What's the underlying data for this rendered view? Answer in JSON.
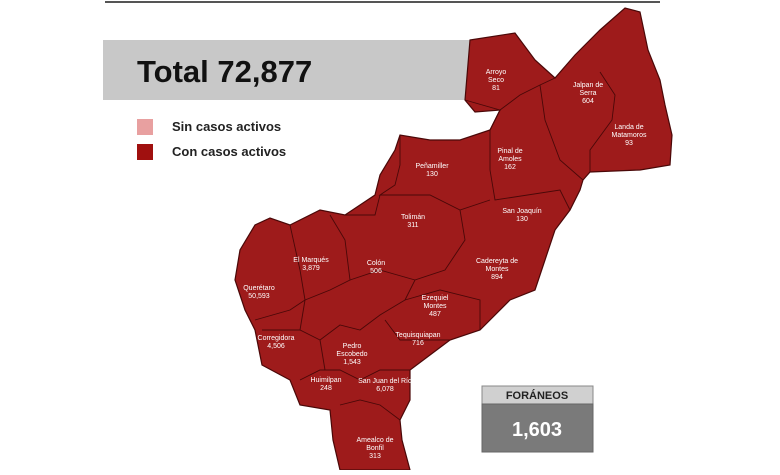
{
  "header": {
    "title": "Total",
    "total": "72,877"
  },
  "legend": {
    "items": [
      {
        "label": "Sin casos activos",
        "color": "#e8a0a0"
      },
      {
        "label": "Con casos activos",
        "color": "#a0100f"
      }
    ]
  },
  "map": {
    "color": "#9e1b1b",
    "municipalities": [
      {
        "name": [
          "Arroyo",
          "Seco"
        ],
        "cases": "81"
      },
      {
        "name": [
          "Jalpan de",
          "Serra"
        ],
        "cases": "604"
      },
      {
        "name": [
          "Landa de",
          "Matamoros"
        ],
        "cases": "93"
      },
      {
        "name": [
          "Pinal de",
          "Amoles"
        ],
        "cases": "162"
      },
      {
        "name": [
          "Peñamiller"
        ],
        "cases": "130"
      },
      {
        "name": [
          "San Joaquín"
        ],
        "cases": "130"
      },
      {
        "name": [
          "Tolimán"
        ],
        "cases": "311"
      },
      {
        "name": [
          "Cadereyta de",
          "Montes"
        ],
        "cases": "894"
      },
      {
        "name": [
          "El  Marqués"
        ],
        "cases": "3,879"
      },
      {
        "name": [
          "Colón"
        ],
        "cases": "506"
      },
      {
        "name": [
          "Querétaro"
        ],
        "cases": "50,593"
      },
      {
        "name": [
          "Ezequiel",
          "Montes"
        ],
        "cases": "487"
      },
      {
        "name": [
          "Tequisquiapan"
        ],
        "cases": "716"
      },
      {
        "name": [
          "Corregidora"
        ],
        "cases": "4,506"
      },
      {
        "name": [
          "Pedro",
          "Escobedo"
        ],
        "cases": "1,543"
      },
      {
        "name": [
          "Huimilpan"
        ],
        "cases": "248"
      },
      {
        "name": [
          "San Juan del Río"
        ],
        "cases": "6,078"
      },
      {
        "name": [
          "Amealco de",
          "Bonfil"
        ],
        "cases": "313"
      }
    ]
  },
  "foraneos": {
    "label": "FORÁNEOS",
    "value": "1,603"
  }
}
